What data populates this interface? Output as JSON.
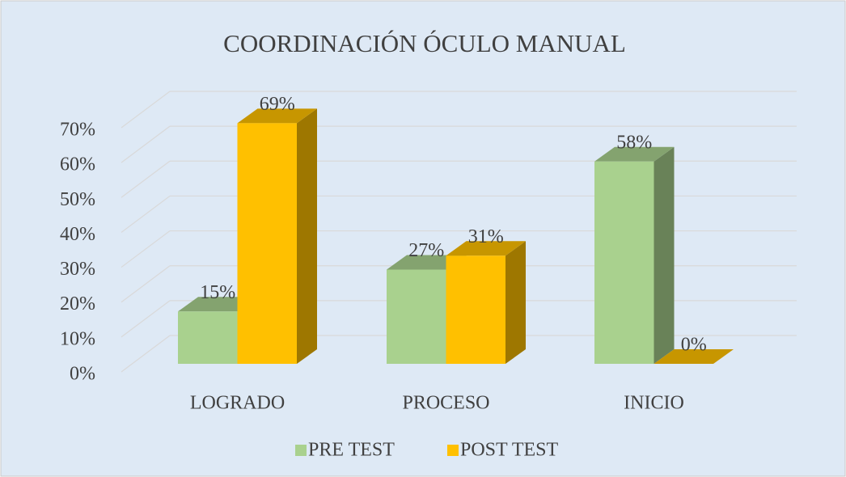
{
  "chart_data": {
    "type": "bar3d",
    "title": "COORDINACIÓN ÓCULO MANUAL",
    "categories": [
      "LOGRADO",
      "PROCESO",
      "INICIO"
    ],
    "series": [
      {
        "name": "PRE TEST",
        "color": "#a9d18e",
        "values": [
          15,
          27,
          58
        ],
        "value_labels": [
          "15%",
          "27%",
          "58%"
        ]
      },
      {
        "name": "POST TEST",
        "color": "#ffc000",
        "values": [
          69,
          31,
          0
        ],
        "value_labels": [
          "69%",
          "31%",
          "0%"
        ]
      }
    ],
    "ylim": [
      0,
      70
    ],
    "yticks": [
      {
        "value": 0,
        "label": "0%"
      },
      {
        "value": 10,
        "label": "10%"
      },
      {
        "value": 20,
        "label": "20%"
      },
      {
        "value": 30,
        "label": "30%"
      },
      {
        "value": 40,
        "label": "40%"
      },
      {
        "value": 50,
        "label": "50%"
      },
      {
        "value": 60,
        "label": "60%"
      },
      {
        "value": 70,
        "label": "70%"
      }
    ],
    "grid": true,
    "legend": "bottom"
  }
}
